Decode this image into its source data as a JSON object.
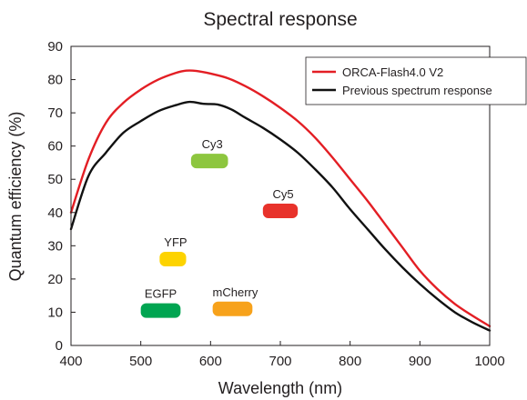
{
  "chart_data": {
    "type": "line",
    "title": "Spectral response",
    "xlabel": "Wavelength (nm)",
    "ylabel": "Quantum efficiency (%)",
    "xlim": [
      400,
      1000
    ],
    "ylim": [
      0,
      90
    ],
    "xticks": [
      400,
      500,
      600,
      700,
      800,
      900,
      1000
    ],
    "yticks": [
      0,
      10,
      20,
      30,
      40,
      50,
      60,
      70,
      80,
      90
    ],
    "grid": false,
    "legend": "top-right",
    "series": [
      {
        "name": "ORCA-Flash4.0 V2",
        "color": "#e31e24",
        "x": [
          400,
          425,
          450,
          475,
          500,
          525,
          550,
          565,
          580,
          600,
          625,
          650,
          675,
          700,
          725,
          750,
          775,
          800,
          825,
          850,
          875,
          900,
          925,
          950,
          975,
          1000
        ],
        "y": [
          40,
          56,
          67,
          73,
          77,
          80,
          82,
          82.7,
          82.6,
          81.8,
          80.4,
          78,
          75,
          71.5,
          67.5,
          62.5,
          56.5,
          50,
          43.5,
          36.5,
          29.5,
          22.5,
          17,
          12.5,
          9,
          5.8
        ]
      },
      {
        "name": "Previous spectrum response",
        "color": "#111111",
        "x": [
          400,
          425,
          450,
          475,
          500,
          525,
          550,
          570,
          590,
          610,
          630,
          650,
          675,
          700,
          725,
          750,
          775,
          800,
          825,
          850,
          875,
          900,
          925,
          950,
          975,
          1000
        ],
        "y": [
          35,
          51,
          58,
          64,
          67.5,
          70.5,
          72.3,
          73.3,
          72.7,
          72.5,
          71,
          68.5,
          65.5,
          62,
          58,
          53,
          47.5,
          41,
          35,
          29,
          23.5,
          18.5,
          14,
          10,
          7,
          4.5
        ]
      }
    ],
    "bands": [
      {
        "label": "Cy3",
        "x": [
          572,
          625
        ],
        "y": 55.5,
        "color": "#8dc63f"
      },
      {
        "label": "Cy5",
        "x": [
          675,
          725
        ],
        "y": 40.5,
        "color": "#e8322b"
      },
      {
        "label": "YFP",
        "x": [
          527,
          565
        ],
        "y": 26,
        "color": "#fdd300"
      },
      {
        "label": "EGFP",
        "x": [
          500,
          557
        ],
        "y": 10.5,
        "color": "#00a551"
      },
      {
        "label": "mCherry",
        "x": [
          603,
          660
        ],
        "y": 11,
        "color": "#f7a21b"
      }
    ]
  }
}
